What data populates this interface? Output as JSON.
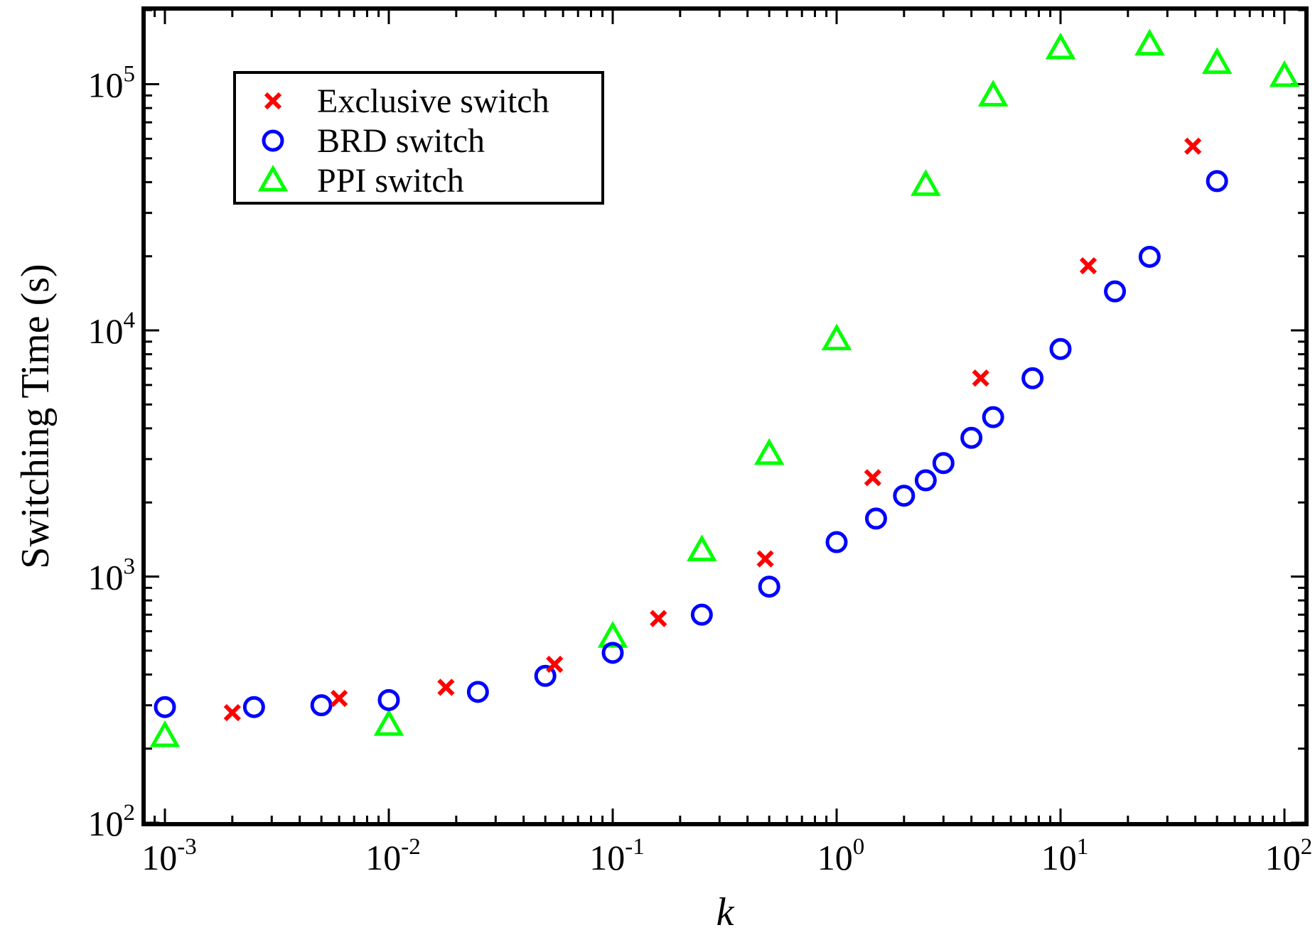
{
  "chart_data": {
    "type": "scatter",
    "xlabel": "k",
    "ylabel": "Switching Time (s)",
    "x_scale": "log",
    "y_scale": "log",
    "xlim": [
      0.001,
      100
    ],
    "ylim": [
      100,
      200000
    ],
    "x_tick_labels": [
      {
        "value": 0.001,
        "base": "10",
        "exp": "-3"
      },
      {
        "value": 0.01,
        "base": "10",
        "exp": "-2"
      },
      {
        "value": 0.1,
        "base": "10",
        "exp": "-1"
      },
      {
        "value": 1,
        "base": "10",
        "exp": "0"
      },
      {
        "value": 10,
        "base": "10",
        "exp": "1"
      },
      {
        "value": 100,
        "base": "10",
        "exp": "2"
      }
    ],
    "y_tick_labels": [
      {
        "value": 100,
        "base": "10",
        "exp": "2"
      },
      {
        "value": 1000,
        "base": "10",
        "exp": "3"
      },
      {
        "value": 10000,
        "base": "10",
        "exp": "4"
      },
      {
        "value": 100000,
        "base": "10",
        "exp": "5"
      }
    ],
    "grid": false,
    "legend_position": "top-left",
    "series": [
      {
        "name": "Exclusive switch",
        "marker": "x",
        "color": "#ff0000",
        "points": [
          [
            0.002,
            280
          ],
          [
            0.006,
            320
          ],
          [
            0.018,
            355
          ],
          [
            0.055,
            440
          ],
          [
            0.16,
            675
          ],
          [
            0.48,
            1180
          ],
          [
            1.45,
            2520
          ],
          [
            4.4,
            6400
          ],
          [
            13.3,
            18300
          ],
          [
            39,
            56000
          ]
        ]
      },
      {
        "name": "BRD switch",
        "marker": "circle",
        "color": "#0000ff",
        "points": [
          [
            0.001,
            295
          ],
          [
            0.0025,
            295
          ],
          [
            0.005,
            300
          ],
          [
            0.01,
            315
          ],
          [
            0.025,
            340
          ],
          [
            0.05,
            395
          ],
          [
            0.1,
            490
          ],
          [
            0.25,
            700
          ],
          [
            0.5,
            910
          ],
          [
            1,
            1380
          ],
          [
            1.5,
            1720
          ],
          [
            2,
            2130
          ],
          [
            2.5,
            2460
          ],
          [
            3,
            2890
          ],
          [
            4,
            3660
          ],
          [
            5,
            4440
          ],
          [
            7.5,
            6390
          ],
          [
            10,
            8400
          ],
          [
            17.5,
            14400
          ],
          [
            25,
            19900
          ],
          [
            50,
            40400
          ]
        ]
      },
      {
        "name": "PPI switch",
        "marker": "triangle",
        "color": "#00ff00",
        "points": [
          [
            0.001,
            225
          ],
          [
            0.01,
            250
          ],
          [
            0.1,
            570
          ],
          [
            0.25,
            1280
          ],
          [
            0.5,
            3150
          ],
          [
            1,
            9200
          ],
          [
            2.5,
            39000
          ],
          [
            5,
            90000
          ],
          [
            10,
            140000
          ],
          [
            25,
            145000
          ],
          [
            50,
            122000
          ],
          [
            100,
            108000
          ]
        ]
      }
    ]
  }
}
